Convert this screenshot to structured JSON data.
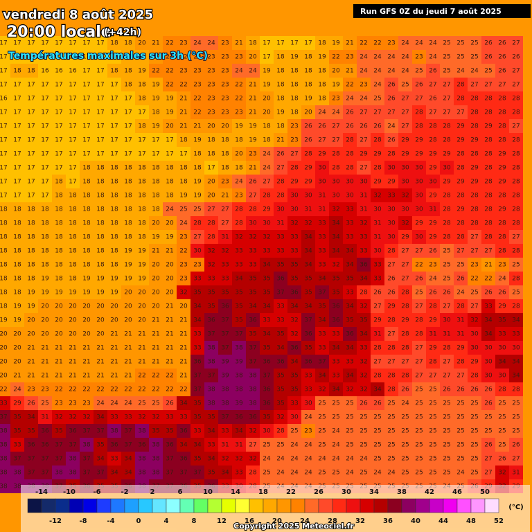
{
  "header": {
    "date": "vendredi 8 août 2025",
    "time": "20:00 locale",
    "lead": "(+42h)",
    "subtitle": "Températures maximales sur 3h (°C)",
    "run": "Run GFS 0Z du jeudi 7 août 2025"
  },
  "legend": {
    "range": [
      -16,
      52
    ],
    "unit": "(°C)",
    "colors": [
      "#0c1446",
      "#142a6a",
      "#0a2d8c",
      "#0000b4",
      "#0000e6",
      "#1e3cff",
      "#1e78ff",
      "#1ea0ff",
      "#28c8ff",
      "#64e6ff",
      "#8cffff",
      "#64ffb4",
      "#64ff64",
      "#b4ff32",
      "#e6ff00",
      "#ffff32",
      "#ffc000",
      "#ffa800",
      "#ff9600",
      "#ff8200",
      "#ff6a28",
      "#ff4a2a",
      "#ff2a14",
      "#ee1010",
      "#d60000",
      "#b40000",
      "#8c0020",
      "#8c0060",
      "#a0008c",
      "#c800c8",
      "#f000f0",
      "#ff50ff",
      "#ff96ff",
      "#ffdcff"
    ],
    "top_ticks": [
      -14,
      -10,
      -6,
      -2,
      2,
      6,
      10,
      14,
      18,
      22,
      26,
      30,
      34,
      38,
      42,
      46,
      50
    ],
    "bottom_ticks": [
      -12,
      -8,
      -4,
      0,
      4,
      8,
      12,
      16,
      20,
      24,
      28,
      32,
      36,
      40,
      44,
      48,
      52
    ]
  },
  "copyright": "Copyright 2025 Meteociel.fr",
  "grid": [
    [
      17,
      17,
      17,
      17,
      17,
      17,
      17,
      17,
      18,
      18,
      20,
      21,
      22,
      23,
      24,
      24,
      23,
      21,
      18,
      17,
      17,
      17,
      17,
      18,
      19,
      21,
      22,
      22,
      23,
      24,
      24,
      24,
      25,
      25,
      25,
      26,
      26,
      27
    ],
    [
      17,
      17,
      17,
      17,
      17,
      17,
      17,
      17,
      17,
      18,
      19,
      20,
      22,
      22,
      23,
      23,
      23,
      23,
      20,
      17,
      18,
      19,
      18,
      19,
      22,
      23,
      24,
      24,
      24,
      24,
      23,
      24,
      25,
      25,
      25,
      26,
      26,
      26
    ],
    [
      17,
      18,
      18,
      16,
      16,
      16,
      17,
      17,
      18,
      18,
      19,
      22,
      22,
      23,
      23,
      23,
      23,
      24,
      24,
      19,
      18,
      18,
      18,
      18,
      20,
      21,
      24,
      24,
      24,
      24,
      25,
      26,
      25,
      24,
      24,
      25,
      26,
      27
    ],
    [
      17,
      17,
      17,
      17,
      17,
      17,
      17,
      17,
      17,
      18,
      18,
      19,
      22,
      22,
      23,
      23,
      23,
      22,
      21,
      19,
      18,
      18,
      18,
      18,
      19,
      22,
      23,
      24,
      26,
      25,
      26,
      27,
      27,
      28,
      27,
      27,
      27,
      27
    ],
    [
      16,
      17,
      17,
      17,
      17,
      17,
      17,
      17,
      17,
      17,
      18,
      19,
      19,
      21,
      22,
      23,
      23,
      22,
      21,
      20,
      18,
      18,
      19,
      18,
      23,
      24,
      24,
      25,
      26,
      27,
      27,
      26,
      27,
      28,
      28,
      28,
      28,
      28
    ],
    [
      17,
      17,
      17,
      17,
      17,
      17,
      17,
      17,
      17,
      17,
      17,
      18,
      19,
      21,
      22,
      23,
      23,
      23,
      21,
      20,
      19,
      18,
      20,
      24,
      24,
      26,
      27,
      27,
      27,
      27,
      28,
      27,
      27,
      27,
      28,
      28,
      28,
      28
    ],
    [
      17,
      17,
      17,
      17,
      17,
      17,
      17,
      17,
      17,
      17,
      18,
      19,
      20,
      21,
      21,
      20,
      20,
      19,
      19,
      18,
      18,
      23,
      26,
      26,
      27,
      26,
      26,
      26,
      24,
      27,
      28,
      28,
      28,
      29,
      28,
      29,
      28,
      27
    ],
    [
      17,
      17,
      17,
      17,
      17,
      17,
      17,
      17,
      17,
      17,
      17,
      17,
      17,
      18,
      19,
      18,
      18,
      18,
      19,
      18,
      21,
      23,
      26,
      27,
      27,
      28,
      27,
      28,
      26,
      29,
      29,
      28,
      28,
      29,
      29,
      28,
      28,
      28
    ],
    [
      17,
      17,
      17,
      17,
      17,
      17,
      17,
      17,
      17,
      17,
      17,
      17,
      17,
      17,
      18,
      18,
      18,
      20,
      23,
      24,
      26,
      27,
      28,
      29,
      28,
      28,
      29,
      29,
      28,
      29,
      29,
      29,
      29,
      28,
      28,
      28,
      29,
      28
    ],
    [
      17,
      17,
      17,
      17,
      17,
      17,
      18,
      18,
      18,
      18,
      18,
      18,
      18,
      18,
      18,
      17,
      18,
      18,
      21,
      24,
      27,
      28,
      29,
      30,
      28,
      28,
      27,
      28,
      30,
      30,
      30,
      29,
      30,
      28,
      29,
      28,
      29,
      28
    ],
    [
      17,
      17,
      17,
      17,
      18,
      17,
      18,
      18,
      18,
      18,
      18,
      18,
      18,
      18,
      19,
      20,
      23,
      24,
      26,
      27,
      28,
      29,
      29,
      30,
      30,
      30,
      30,
      29,
      29,
      30,
      30,
      30,
      29,
      29,
      29,
      28,
      29,
      28
    ],
    [
      17,
      17,
      17,
      17,
      18,
      18,
      18,
      18,
      18,
      18,
      18,
      18,
      18,
      19,
      19,
      20,
      21,
      23,
      27,
      28,
      28,
      30,
      30,
      31,
      30,
      30,
      31,
      32,
      33,
      32,
      30,
      29,
      28,
      28,
      28,
      28,
      28,
      28
    ],
    [
      18,
      18,
      18,
      18,
      18,
      18,
      18,
      18,
      18,
      18,
      18,
      18,
      24,
      25,
      25,
      27,
      27,
      28,
      28,
      29,
      30,
      30,
      31,
      31,
      32,
      33,
      31,
      30,
      30,
      30,
      30,
      31,
      28,
      29,
      28,
      28,
      29,
      28
    ],
    [
      18,
      18,
      18,
      18,
      18,
      18,
      18,
      18,
      18,
      18,
      18,
      20,
      20,
      24,
      28,
      28,
      27,
      28,
      30,
      30,
      31,
      32,
      32,
      33,
      34,
      33,
      32,
      31,
      30,
      32,
      29,
      29,
      28,
      28,
      28,
      28,
      28,
      28
    ],
    [
      18,
      18,
      18,
      18,
      18,
      18,
      18,
      18,
      18,
      18,
      18,
      19,
      19,
      23,
      27,
      28,
      31,
      32,
      32,
      32,
      33,
      33,
      34,
      33,
      34,
      33,
      33,
      31,
      30,
      29,
      30,
      29,
      28,
      28,
      27,
      28,
      28,
      27
    ],
    [
      18,
      18,
      18,
      18,
      18,
      18,
      18,
      18,
      18,
      19,
      19,
      21,
      21,
      22,
      30,
      32,
      32,
      33,
      33,
      33,
      33,
      33,
      34,
      33,
      34,
      34,
      33,
      30,
      28,
      27,
      27,
      26,
      25,
      27,
      27,
      27,
      28,
      28
    ],
    [
      18,
      18,
      18,
      18,
      18,
      18,
      18,
      18,
      18,
      19,
      19,
      20,
      20,
      23,
      23,
      32,
      33,
      33,
      33,
      34,
      35,
      35,
      34,
      33,
      32,
      34,
      36,
      33,
      27,
      27,
      22,
      23,
      25,
      25,
      23,
      21,
      23,
      25
    ],
    [
      18,
      18,
      18,
      19,
      18,
      18,
      19,
      19,
      19,
      19,
      19,
      20,
      20,
      23,
      33,
      33,
      33,
      34,
      35,
      35,
      36,
      35,
      35,
      34,
      35,
      35,
      34,
      33,
      26,
      27,
      26,
      24,
      25,
      26,
      22,
      22,
      24,
      28
    ],
    [
      18,
      18,
      19,
      19,
      19,
      19,
      19,
      19,
      19,
      20,
      20,
      20,
      20,
      32,
      35,
      35,
      35,
      35,
      35,
      35,
      37,
      36,
      35,
      37,
      35,
      33,
      28,
      26,
      26,
      28,
      25,
      26,
      26,
      24,
      25,
      26,
      26,
      25
    ],
    [
      18,
      19,
      19,
      20,
      20,
      20,
      20,
      20,
      20,
      20,
      20,
      20,
      21,
      20,
      34,
      35,
      36,
      35,
      34,
      34,
      33,
      34,
      34,
      35,
      36,
      34,
      32,
      27,
      29,
      28,
      27,
      28,
      27,
      28,
      27,
      33,
      29,
      28
    ],
    [
      19,
      19,
      20,
      20,
      20,
      20,
      20,
      20,
      20,
      20,
      20,
      21,
      21,
      21,
      34,
      36,
      37,
      35,
      36,
      33,
      33,
      32,
      37,
      34,
      36,
      35,
      35,
      29,
      28,
      29,
      28,
      29,
      30,
      31,
      32,
      34,
      35,
      34
    ],
    [
      20,
      20,
      20,
      20,
      20,
      20,
      20,
      20,
      21,
      21,
      21,
      21,
      21,
      21,
      33,
      37,
      37,
      37,
      35,
      34,
      35,
      32,
      36,
      33,
      33,
      36,
      34,
      31,
      27,
      28,
      28,
      31,
      31,
      31,
      30,
      34,
      33,
      33
    ],
    [
      20,
      20,
      21,
      21,
      21,
      21,
      21,
      21,
      21,
      21,
      21,
      21,
      21,
      21,
      33,
      38,
      37,
      38,
      37,
      35,
      34,
      36,
      35,
      33,
      34,
      34,
      33,
      28,
      28,
      28,
      27,
      29,
      28,
      29,
      30,
      30,
      30,
      30
    ],
    [
      20,
      20,
      21,
      21,
      21,
      21,
      21,
      21,
      21,
      21,
      21,
      21,
      21,
      21,
      36,
      38,
      39,
      39,
      37,
      36,
      36,
      34,
      36,
      37,
      33,
      33,
      32,
      27,
      27,
      27,
      27,
      28,
      27,
      28,
      29,
      30,
      34,
      34
    ],
    [
      20,
      21,
      21,
      21,
      21,
      21,
      21,
      21,
      21,
      21,
      22,
      22,
      22,
      21,
      37,
      37,
      39,
      38,
      38,
      37,
      35,
      35,
      33,
      34,
      33,
      34,
      32,
      28,
      28,
      28,
      27,
      27,
      27,
      27,
      28,
      30,
      30,
      34
    ],
    [
      22,
      24,
      23,
      23,
      22,
      22,
      22,
      22,
      22,
      22,
      22,
      22,
      22,
      22,
      37,
      38,
      38,
      38,
      38,
      36,
      35,
      35,
      33,
      32,
      34,
      32,
      32,
      34,
      28,
      26,
      25,
      25,
      26,
      26,
      26,
      26,
      28,
      28
    ],
    [
      33,
      29,
      26,
      25,
      23,
      23,
      23,
      24,
      24,
      24,
      25,
      25,
      26,
      34,
      35,
      38,
      38,
      39,
      38,
      36,
      35,
      33,
      30,
      25,
      25,
      25,
      26,
      26,
      25,
      24,
      25,
      25,
      25,
      25,
      25,
      26,
      25,
      25
    ],
    [
      37,
      35,
      34,
      31,
      32,
      32,
      32,
      34,
      33,
      33,
      32,
      32,
      33,
      33,
      35,
      35,
      37,
      36,
      36,
      35,
      32,
      30,
      24,
      25,
      25,
      25,
      25,
      25,
      25,
      25,
      25,
      25,
      25,
      25,
      25,
      25,
      25,
      25
    ],
    [
      38,
      35,
      35,
      36,
      35,
      36,
      37,
      37,
      38,
      37,
      38,
      35,
      35,
      36,
      33,
      34,
      33,
      34,
      32,
      30,
      28,
      25,
      23,
      25,
      24,
      25,
      25,
      25,
      25,
      25,
      25,
      25,
      25,
      25,
      25,
      25,
      25,
      25
    ],
    [
      38,
      33,
      36,
      36,
      37,
      37,
      38,
      35,
      36,
      37,
      36,
      38,
      36,
      34,
      34,
      33,
      31,
      31,
      27,
      25,
      25,
      24,
      24,
      25,
      24,
      25,
      25,
      25,
      25,
      25,
      25,
      25,
      25,
      25,
      25,
      26,
      25,
      26
    ],
    [
      38,
      37,
      37,
      37,
      37,
      38,
      37,
      34,
      33,
      34,
      38,
      38,
      37,
      36,
      35,
      34,
      32,
      32,
      32,
      24,
      24,
      24,
      24,
      24,
      24,
      24,
      24,
      25,
      25,
      25,
      25,
      25,
      25,
      25,
      25,
      27,
      26,
      27
    ],
    [
      38,
      38,
      37,
      37,
      38,
      38,
      37,
      37,
      34,
      34,
      38,
      38,
      37,
      37,
      37,
      35,
      34,
      33,
      28,
      25,
      24,
      24,
      24,
      25,
      25,
      24,
      25,
      24,
      24,
      25,
      25,
      25,
      25,
      24,
      25,
      27,
      32,
      31
    ],
    [
      38,
      38,
      38,
      38,
      37,
      35,
      36,
      35,
      35,
      36,
      38,
      37,
      37,
      36,
      35,
      36,
      33,
      30,
      28,
      25,
      24,
      24,
      24,
      25,
      25,
      25,
      25,
      25,
      25,
      25,
      25,
      25,
      24,
      25,
      26,
      29,
      32,
      29
    ]
  ]
}
